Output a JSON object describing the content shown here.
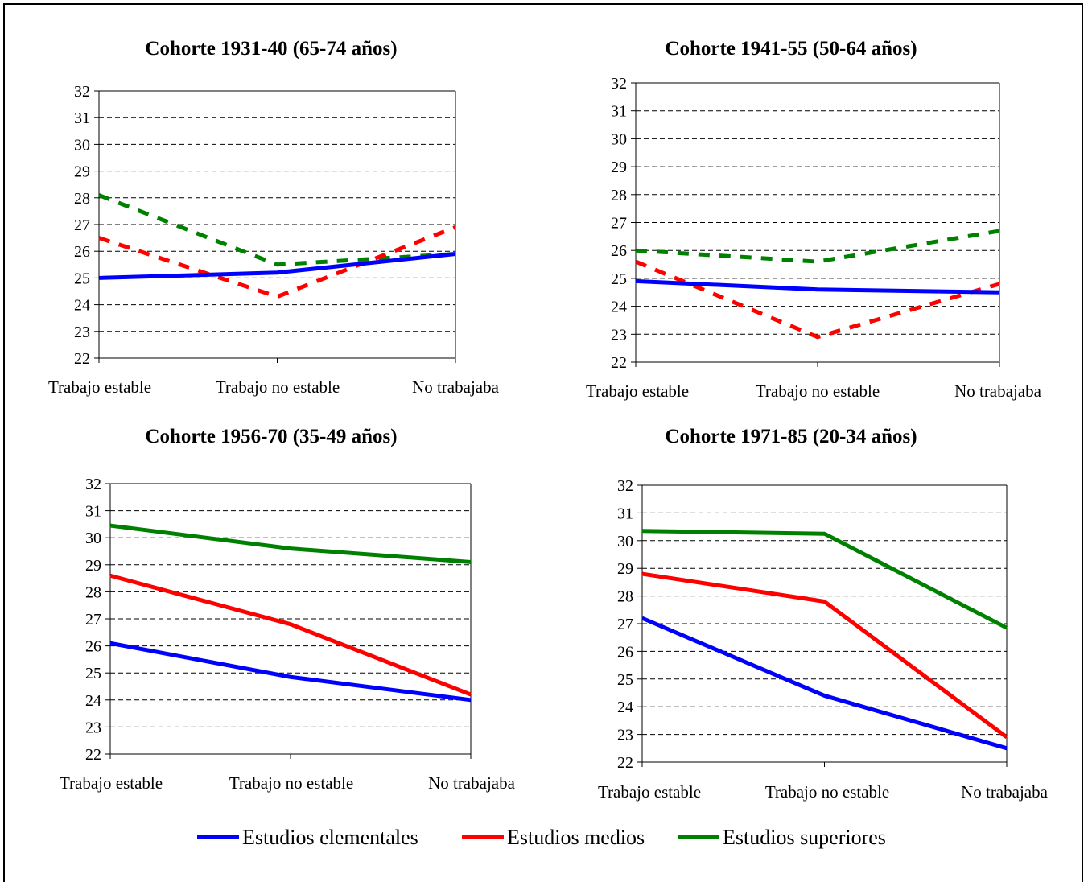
{
  "colors": {
    "Estudios elementales": "#0000ff",
    "Estudios medios": "#ff0000",
    "Estudios superiores": "#008000"
  },
  "legend": {
    "position": "bottom",
    "items": [
      "Estudios elementales",
      "Estudios medios",
      "Estudios superiores"
    ]
  },
  "chart_data": [
    {
      "type": "line",
      "title": "Cohorte 1931-40 (65-74 años)",
      "categories": [
        "Trabajo estable",
        "Trabajo no estable",
        "No trabajaba"
      ],
      "ylim": [
        22,
        32
      ],
      "yticks": [
        "22",
        "23",
        "24",
        "25",
        "26",
        "27",
        "28",
        "29",
        "30",
        "31",
        "32"
      ],
      "grid": true,
      "line_style": "dashed",
      "series": [
        {
          "name": "Estudios elementales",
          "values": [
            25.0,
            25.2,
            25.9
          ],
          "dashed": false
        },
        {
          "name": "Estudios medios",
          "values": [
            26.5,
            24.3,
            26.9
          ],
          "dashed": true
        },
        {
          "name": "Estudios superiores",
          "values": [
            28.1,
            25.5,
            25.9
          ],
          "dashed": true
        }
      ]
    },
    {
      "type": "line",
      "title": "Cohorte 1941-55 (50-64 años)",
      "categories": [
        "Trabajo estable",
        "Trabajo no estable",
        "No trabajaba"
      ],
      "ylim": [
        22,
        32
      ],
      "yticks": [
        "22",
        "23",
        "24",
        "25",
        "26",
        "27",
        "28",
        "29",
        "30",
        "31",
        "32"
      ],
      "grid": true,
      "series": [
        {
          "name": "Estudios elementales",
          "values": [
            24.9,
            24.6,
            24.5
          ],
          "dashed": false
        },
        {
          "name": "Estudios medios",
          "values": [
            25.6,
            22.9,
            24.8
          ],
          "dashed": true
        },
        {
          "name": "Estudios superiores",
          "values": [
            26.0,
            25.6,
            26.7
          ],
          "dashed": true
        }
      ]
    },
    {
      "type": "line",
      "title": "Cohorte 1956-70 (35-49 años)",
      "categories": [
        "Trabajo estable",
        "Trabajo no estable",
        "No trabajaba"
      ],
      "ylim": [
        22,
        32
      ],
      "yticks": [
        "22",
        "23",
        "24",
        "25",
        "26",
        "27",
        "28",
        "29",
        "30",
        "31",
        "32"
      ],
      "grid": true,
      "series": [
        {
          "name": "Estudios elementales",
          "values": [
            26.1,
            24.85,
            24.0
          ],
          "dashed": false
        },
        {
          "name": "Estudios medios",
          "values": [
            28.6,
            26.8,
            24.2
          ],
          "dashed": false
        },
        {
          "name": "Estudios superiores",
          "values": [
            30.45,
            29.6,
            29.1
          ],
          "dashed": false
        }
      ]
    },
    {
      "type": "line",
      "title": "Cohorte 1971-85 (20-34 años)",
      "categories": [
        "Trabajo estable",
        "Trabajo no estable",
        "No trabajaba"
      ],
      "ylim": [
        22,
        32
      ],
      "yticks": [
        "22",
        "23",
        "24",
        "25",
        "26",
        "27",
        "28",
        "29",
        "30",
        "31",
        "32"
      ],
      "grid": true,
      "series": [
        {
          "name": "Estudios elementales",
          "values": [
            27.2,
            24.4,
            22.5
          ],
          "dashed": false
        },
        {
          "name": "Estudios medios",
          "values": [
            28.8,
            27.8,
            22.9
          ],
          "dashed": false
        },
        {
          "name": "Estudios superiores",
          "values": [
            30.35,
            30.25,
            26.85
          ],
          "dashed": false
        }
      ]
    }
  ]
}
